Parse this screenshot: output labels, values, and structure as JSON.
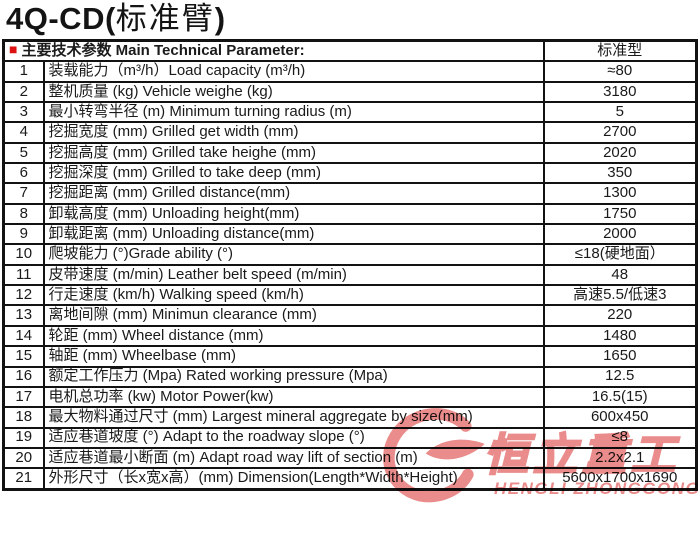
{
  "title": {
    "model_prefix": "4Q-CD(",
    "model_cn": "标准臂",
    "model_suffix": ")"
  },
  "table": {
    "header": {
      "bullet_icon": "■",
      "section_title": "主要技术参数 Main Technical Parameter:",
      "value_column": "标准型"
    },
    "rows": [
      {
        "no": "1",
        "name": "装载能力（m³/h）Load capacity (m³/h)",
        "value": "≈80"
      },
      {
        "no": "2",
        "name": "整机质量 (kg) Vehicle weighe (kg)",
        "value": "3180"
      },
      {
        "no": "3",
        "name": "最小转弯半径 (m) Minimum turning radius (m)",
        "value": "5"
      },
      {
        "no": "4",
        "name": "挖掘宽度 (mm) Grilled get width (mm)",
        "value": "2700"
      },
      {
        "no": "5",
        "name": "挖掘高度 (mm) Grilled take heighe (mm)",
        "value": "2020"
      },
      {
        "no": "6",
        "name": "挖掘深度 (mm) Grilled to take deep (mm)",
        "value": "350"
      },
      {
        "no": "7",
        "name": "挖掘距离 (mm) Grilled distance(mm)",
        "value": "1300"
      },
      {
        "no": "8",
        "name": "卸载高度 (mm) Unloading height(mm)",
        "value": "1750"
      },
      {
        "no": "9",
        "name": "卸载距离 (mm) Unloading distance(mm)",
        "value": "2000"
      },
      {
        "no": "10",
        "name": "爬坡能力 (°)Grade ability (°)",
        "value": "≤18(硬地面）"
      },
      {
        "no": "11",
        "name": "皮带速度 (m/min) Leather  belt speed (m/min)",
        "value": "48"
      },
      {
        "no": "12",
        "name": "行走速度 (km/h) Walking speed (km/h)",
        "value": "高速5.5/低速3"
      },
      {
        "no": "13",
        "name": "离地间隙 (mm) Minimun clearance (mm)",
        "value": "220"
      },
      {
        "no": "14",
        "name": "轮距 (mm) Wheel distance (mm)",
        "value": "1480"
      },
      {
        "no": "15",
        "name": "轴距 (mm) Wheelbase (mm)",
        "value": "1650"
      },
      {
        "no": "16",
        "name": "额定工作压力 (Mpa) Rated working pressure (Mpa)",
        "value": "12.5"
      },
      {
        "no": "17",
        "name": "电机总功率 (kw) Motor Power(kw)",
        "value": "16.5(15)"
      },
      {
        "no": "18",
        "name": "最大物料通过尺寸 (mm) Largest mineral aggregate by size(mm)",
        "value": "600x450"
      },
      {
        "no": "19",
        "name": "适应巷道坡度 (°) Adapt to the roadway slope (°)",
        "value": "≤8"
      },
      {
        "no": "20",
        "name": "适应巷道最小断面 (m) Adapt road way lift of section (m)",
        "value": "2.2x2.1"
      },
      {
        "no": "21",
        "name": "外形尺寸（长x宽x高）(mm) Dimension(Length*Width*Height)",
        "value": "5600x1700x1690"
      }
    ]
  },
  "watermark": {
    "cn_text": "恒立重工",
    "en_text": "HENGLI ZHONGGONG",
    "color": "#e87f7f"
  },
  "colors": {
    "bullet": "#dd1111",
    "border": "#121212",
    "text": "#1a1a1a"
  }
}
